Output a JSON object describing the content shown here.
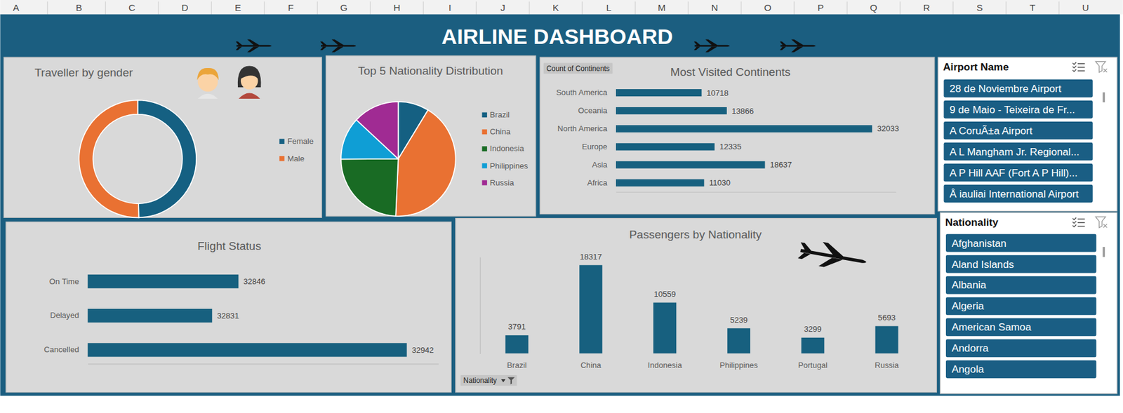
{
  "title": "AIRLINE DASHBOARD",
  "sheet_columns": [
    "A",
    "B",
    "C",
    "D",
    "E",
    "F",
    "G",
    "H",
    "I",
    "J",
    "K",
    "L",
    "M",
    "N",
    "O",
    "P",
    "Q",
    "R",
    "S",
    "T",
    "U"
  ],
  "chart_data": [
    {
      "type": "donut",
      "title": "Traveller by gender",
      "categories": [
        "Female",
        "Male"
      ],
      "values": [
        49021,
        49598
      ],
      "colors": [
        "#156082",
        "#e97132"
      ],
      "legend": "right",
      "data_labels": false
    },
    {
      "type": "pie",
      "title": "Top 5 Nationality Distribution",
      "categories": [
        "Brazil",
        "China",
        "Indonesia",
        "Philippines",
        "Russia"
      ],
      "values": [
        3791,
        18317,
        10559,
        5239,
        5693
      ],
      "colors": [
        "#156082",
        "#e97132",
        "#196b24",
        "#0f9ed5",
        "#a02b93"
      ],
      "legend": "right",
      "data_labels": false
    },
    {
      "type": "bar",
      "orientation": "horizontal",
      "title": "Most Visited Continents",
      "annotations": [
        "Count of Continents"
      ],
      "categories": [
        "Africa",
        "Asia",
        "Europe",
        "North America",
        "Oceania",
        "South America"
      ],
      "values": [
        11030,
        18637,
        12335,
        32033,
        13866,
        10718
      ],
      "color": "#17607f",
      "xlim": [
        0,
        35000
      ],
      "xticks": [],
      "data_labels": true,
      "tick_labels": "y"
    },
    {
      "type": "bar",
      "orientation": "horizontal",
      "title": "Flight Status",
      "categories": [
        "Cancelled",
        "Delayed",
        "On Time"
      ],
      "values": [
        32942,
        32831,
        32846
      ],
      "color": "#17607f",
      "xlim": [
        32760,
        32960
      ],
      "xticks": [],
      "data_labels": true,
      "tick_labels": "y"
    },
    {
      "type": "bar",
      "title": "Passengers by Nationality",
      "annotations": [
        "Nationality"
      ],
      "categories": [
        "Brazil",
        "China",
        "Indonesia",
        "Philippines",
        "Portugal",
        "Russia"
      ],
      "values": [
        3791,
        18317,
        10559,
        5239,
        3299,
        5693
      ],
      "color": "#17607f",
      "ylim": [
        0,
        20000
      ],
      "yticks": [],
      "data_labels": true,
      "tick_labels": "x"
    }
  ],
  "slicers": [
    {
      "title": "Airport Name",
      "items": [
        "28 de Noviembre Airport",
        "9 de Maio - Teixeira de Fr...",
        "A CoruÃ±a Airport",
        "A L Mangham Jr. Regional...",
        "A P Hill AAF (Fort A P Hill)...",
        "Å iauliai International Airport"
      ]
    },
    {
      "title": "Nationality",
      "items": [
        "Afghanistan",
        "Aland Islands",
        "Albania",
        "Algeria",
        "American Samoa",
        "Andorra",
        "Angola"
      ]
    }
  ]
}
